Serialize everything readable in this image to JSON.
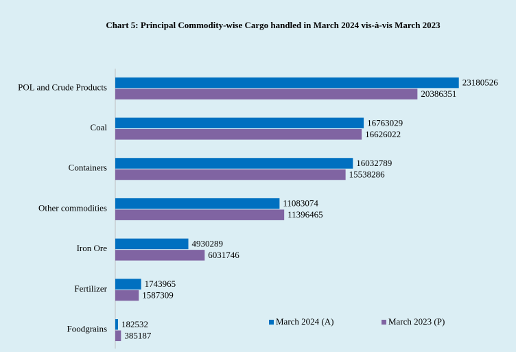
{
  "chart_data": {
    "type": "bar",
    "orientation": "horizontal",
    "title": "Chart 5: Principal Commodity-wise Cargo handled  in March 2024 vis-à-vis March 2023",
    "categories": [
      "POL and Crude Products",
      "Coal",
      "Containers",
      "Other commodities",
      "Iron Ore",
      "Fertilizer",
      "Foodgrains"
    ],
    "series": [
      {
        "name": "March 2024 (A)",
        "color": "#0070c0",
        "values": [
          23180526,
          16763029,
          16032789,
          11083074,
          4930289,
          1743965,
          182532
        ]
      },
      {
        "name": "March 2023 (P)",
        "color": "#8064a2",
        "values": [
          20386351,
          16626022,
          15538286,
          11396465,
          6031746,
          1587309,
          385187
        ]
      }
    ],
    "xlim": [
      0,
      25000000
    ],
    "legend": "bottom-right"
  }
}
